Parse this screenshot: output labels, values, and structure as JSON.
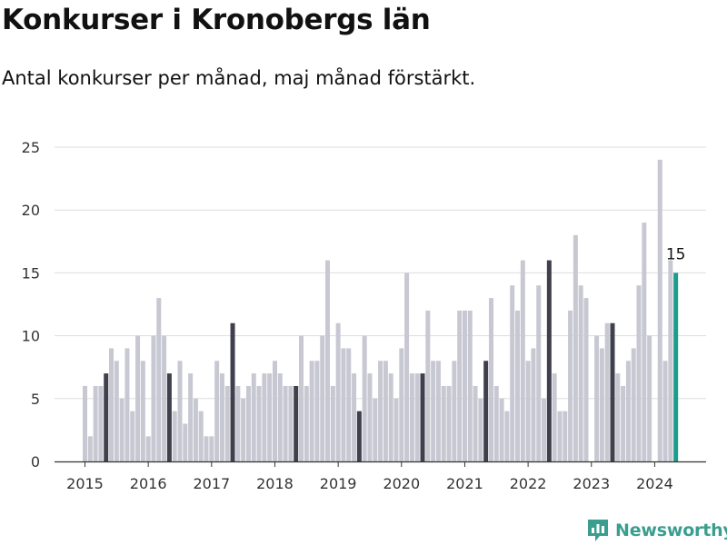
{
  "header": {
    "title": "Konkurser i Kronobergs län",
    "subtitle": "Antal konkurser per månad, maj månad förstärkt."
  },
  "brand": {
    "name": "Newsworthy"
  },
  "colors": {
    "bar": "#c8c8d3",
    "highlight": "#3f3f4d",
    "latest": "#1a9e8c",
    "grid": "#dddddd",
    "brand": "#3a9e8f"
  },
  "chart_data": {
    "type": "bar",
    "start": "2015-01",
    "x_tick_labels": [
      "2015",
      "2016",
      "2017",
      "2018",
      "2019",
      "2020",
      "2021",
      "2022",
      "2023",
      "2024"
    ],
    "y_ticks": [
      0,
      5,
      10,
      15,
      20,
      25
    ],
    "ylim": [
      0,
      25
    ],
    "grid": true,
    "highlight_month": "May",
    "values": [
      6,
      2,
      6,
      6,
      7,
      9,
      8,
      5,
      9,
      4,
      10,
      8,
      2,
      10,
      13,
      10,
      7,
      4,
      8,
      3,
      7,
      5,
      4,
      2,
      2,
      8,
      7,
      6,
      11,
      6,
      5,
      6,
      7,
      6,
      7,
      7,
      8,
      7,
      6,
      6,
      6,
      10,
      6,
      8,
      8,
      10,
      16,
      6,
      11,
      9,
      9,
      7,
      4,
      10,
      7,
      5,
      8,
      8,
      7,
      5,
      9,
      15,
      7,
      7,
      7,
      12,
      8,
      8,
      6,
      6,
      8,
      12,
      12,
      12,
      6,
      5,
      8,
      13,
      6,
      5,
      4,
      14,
      12,
      16,
      8,
      9,
      14,
      5,
      16,
      7,
      4,
      4,
      12,
      18,
      14,
      13,
      0,
      10,
      9,
      11,
      11,
      7,
      6,
      8,
      9,
      14,
      19,
      10,
      0,
      24,
      8,
      16,
      15
    ],
    "latest_label": "15"
  }
}
